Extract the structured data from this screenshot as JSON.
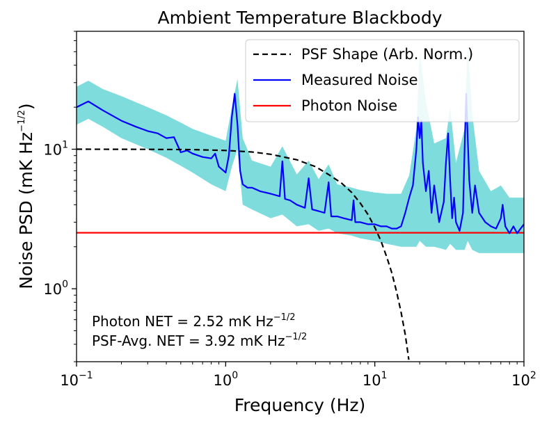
{
  "chart_data": {
    "type": "line",
    "title": "Ambient Temperature Blackbody",
    "xlabel": "Frequency (Hz)",
    "ylabel": {
      "base": "Noise PSD (mK Hz",
      "sup": "−1/2",
      "tail": ")"
    },
    "x_scale": "log",
    "y_scale": "log",
    "xlim": [
      0.1,
      100
    ],
    "ylim": [
      0.3,
      70
    ],
    "x_ticks": [
      {
        "value": 0.1,
        "base": "10",
        "exp": "−1"
      },
      {
        "value": 1,
        "base": "10",
        "exp": "0"
      },
      {
        "value": 10,
        "base": "10",
        "exp": "1"
      },
      {
        "value": 100,
        "base": "10",
        "exp": "2"
      }
    ],
    "y_ticks": [
      {
        "value": 1,
        "base": "10",
        "exp": "0"
      },
      {
        "value": 10,
        "base": "10",
        "exp": "1"
      }
    ],
    "legend": {
      "position": "upper right",
      "entries": [
        {
          "label": "PSF Shape (Arb. Norm.)",
          "color": "#000000",
          "style": "dashed"
        },
        {
          "label": "Measured Noise",
          "color": "#0000ff",
          "style": "solid"
        },
        {
          "label": "Photon Noise",
          "color": "#ff0000",
          "style": "solid"
        }
      ]
    },
    "series": [
      {
        "name": "PSF Shape (Arb. Norm.)",
        "color": "#000000",
        "style": "dashed",
        "x": [
          0.1,
          0.3,
          0.6,
          1.0,
          1.5,
          2.0,
          3.0,
          4.0,
          5.0,
          6.0,
          7.0,
          8.0,
          9.0,
          10.0,
          11.0,
          12.0,
          13.0,
          14.0,
          15.0,
          16.0,
          16.9
        ],
        "y": [
          10.0,
          9.98,
          9.93,
          9.8,
          9.55,
          9.2,
          8.4,
          7.5,
          6.5,
          5.7,
          4.9,
          4.1,
          3.4,
          2.75,
          2.2,
          1.7,
          1.3,
          0.95,
          0.68,
          0.47,
          0.31
        ]
      },
      {
        "name": "Measured Noise",
        "color": "#0000ff",
        "style": "solid",
        "x": [
          0.1,
          0.12,
          0.15,
          0.2,
          0.25,
          0.3,
          0.35,
          0.4,
          0.45,
          0.5,
          0.55,
          0.6,
          0.7,
          0.8,
          0.85,
          0.9,
          1.0,
          1.05,
          1.1,
          1.15,
          1.2,
          1.25,
          1.3,
          1.4,
          1.5,
          1.7,
          2.0,
          2.3,
          2.4,
          2.5,
          2.7,
          3.0,
          3.4,
          3.6,
          3.8,
          4.2,
          4.6,
          4.9,
          5.1,
          5.6,
          6.2,
          7.0,
          7.2,
          7.4,
          8.0,
          9.0,
          10.0,
          11.0,
          12.0,
          13.0,
          14.0,
          15.0,
          16.0,
          17.0,
          18.0,
          19.0,
          19.5,
          20.0,
          20.5,
          21.0,
          22.0,
          23.0,
          24.0,
          25.0,
          27.0,
          29.0,
          30.0,
          31.0,
          32.0,
          33.0,
          34.0,
          35.0,
          37.0,
          39.0,
          40.0,
          41.0,
          42.0,
          43.0,
          44.0,
          45.0,
          47.0,
          50.0,
          55.0,
          60.0,
          65.0,
          70.0,
          72.0,
          75.0,
          80.0,
          85.0,
          90.0,
          95.0,
          100.0
        ],
        "y": [
          20,
          22,
          19,
          16,
          14.5,
          13.5,
          13,
          12,
          12.2,
          9.5,
          9.8,
          9.3,
          8.8,
          8.6,
          9.3,
          7.5,
          6.8,
          9.0,
          17,
          25,
          15,
          7.0,
          5.6,
          5.3,
          5.3,
          5.0,
          4.8,
          4.6,
          8.2,
          4.4,
          4.3,
          4.0,
          3.8,
          6.2,
          3.7,
          3.6,
          3.5,
          5.8,
          3.3,
          3.3,
          3.2,
          3.1,
          4.3,
          3.0,
          3.0,
          2.9,
          2.9,
          2.8,
          2.8,
          2.7,
          2.7,
          2.8,
          3.5,
          4.5,
          5.5,
          10,
          17,
          12,
          16,
          8,
          5,
          7,
          3.5,
          5.5,
          3.0,
          4.2,
          8,
          13,
          6,
          3.2,
          4.5,
          3.0,
          2.6,
          3.5,
          10,
          25,
          12,
          6,
          4.5,
          3.5,
          5.5,
          3.5,
          3.0,
          2.8,
          2.7,
          3.2,
          4.0,
          2.8,
          2.5,
          2.8,
          2.5,
          2.7,
          2.9
        ]
      },
      {
        "name": "Photon Noise",
        "color": "#ff0000",
        "style": "solid",
        "x": [
          0.1,
          100
        ],
        "y": [
          2.52,
          2.52
        ]
      }
    ],
    "band": {
      "color": "#7fdcdc",
      "x": [
        0.1,
        0.12,
        0.15,
        0.2,
        0.3,
        0.4,
        0.5,
        0.6,
        0.8,
        1.0,
        1.1,
        1.2,
        1.3,
        1.5,
        2.0,
        2.4,
        3.0,
        3.6,
        4.2,
        4.9,
        5.6,
        7.0,
        8.0,
        10.0,
        12.0,
        15.0,
        17.0,
        19.0,
        20.0,
        22.0,
        25.0,
        30.0,
        32.0,
        35.0,
        40.0,
        42.0,
        45.0,
        50.0,
        60.0,
        70.0,
        80.0,
        100.0
      ],
      "upper": [
        28,
        31,
        27,
        24,
        20,
        17.5,
        15.5,
        14,
        12.5,
        11.5,
        20,
        32,
        12,
        8.3,
        7.5,
        10.5,
        6.6,
        8.3,
        6.1,
        7.8,
        5.6,
        5.3,
        5.1,
        4.9,
        4.8,
        4.8,
        6.5,
        14,
        50,
        22,
        11,
        12,
        20,
        8,
        14,
        55,
        18,
        7,
        5,
        5.5,
        4.5,
        4.5
      ],
      "lower": [
        15,
        16.5,
        14.5,
        12,
        10,
        8.7,
        7.6,
        6.8,
        5.6,
        5.0,
        7.5,
        10,
        4.0,
        3.7,
        3.2,
        3.4,
        2.8,
        2.9,
        2.6,
        2.7,
        2.5,
        2.4,
        2.3,
        2.2,
        2.1,
        2.0,
        2.0,
        2.0,
        2.2,
        2.0,
        2.0,
        1.9,
        2.1,
        1.9,
        1.9,
        2.2,
        1.9,
        1.8,
        1.8,
        1.8,
        1.8,
        1.8
      ]
    },
    "annotations": [
      {
        "text": "Photon NET = 2.52 mK Hz",
        "sup": "−1/2"
      },
      {
        "text": "PSF-Avg. NET = 3.92 mK Hz",
        "sup": "−1/2"
      }
    ],
    "grid": false
  }
}
